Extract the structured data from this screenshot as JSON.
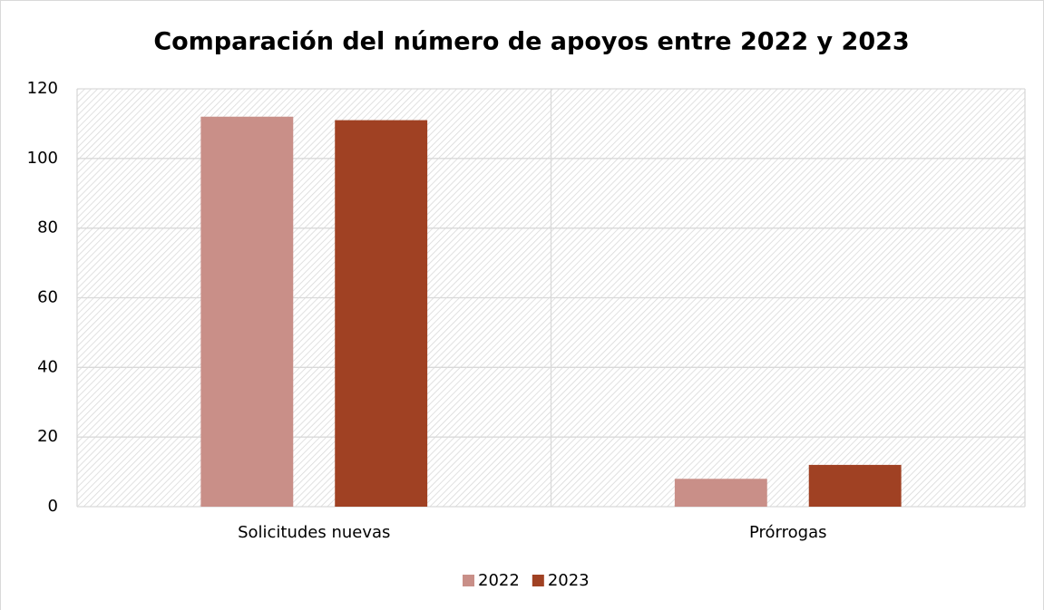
{
  "chart_data": {
    "type": "bar",
    "title": "Comparación del número de apoyos entre 2022 y 2023",
    "categories": [
      "Solicitudes nuevas",
      "Prórrogas"
    ],
    "series": [
      {
        "name": "2022",
        "color": "#c98f88",
        "values": [
          112,
          8
        ]
      },
      {
        "name": "2023",
        "color": "#a04123",
        "values": [
          111,
          12
        ]
      }
    ],
    "ylim": [
      0,
      120
    ],
    "yticks": [
      0,
      20,
      40,
      60,
      80,
      100,
      120
    ],
    "grid": true,
    "legend": "bottom"
  }
}
